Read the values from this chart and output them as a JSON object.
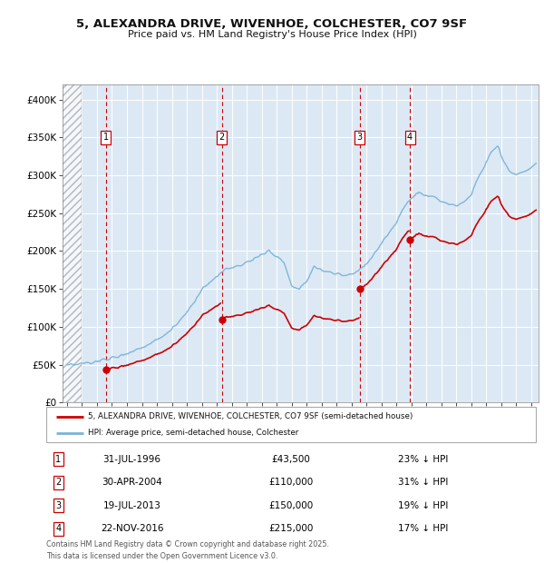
{
  "title_line1": "5, ALEXANDRA DRIVE, WIVENHOE, COLCHESTER, CO7 9SF",
  "title_line2": "Price paid vs. HM Land Registry's House Price Index (HPI)",
  "sales": [
    {
      "date_num": 1996.583,
      "price": 43500,
      "label": "1"
    },
    {
      "date_num": 2004.333,
      "price": 110000,
      "label": "2"
    },
    {
      "date_num": 2013.542,
      "price": 150000,
      "label": "3"
    },
    {
      "date_num": 2016.9,
      "price": 215000,
      "label": "4"
    }
  ],
  "sale_label_details": [
    {
      "num": "1",
      "date": "31-JUL-1996",
      "price": "£43,500",
      "hpi": "23% ↓ HPI"
    },
    {
      "num": "2",
      "date": "30-APR-2004",
      "price": "£110,000",
      "hpi": "31% ↓ HPI"
    },
    {
      "num": "3",
      "date": "19-JUL-2013",
      "price": "£150,000",
      "hpi": "19% ↓ HPI"
    },
    {
      "num": "4",
      "date": "22-NOV-2016",
      "price": "£215,000",
      "hpi": "17% ↓ HPI"
    }
  ],
  "hpi_color": "#7ab3d8",
  "sale_color": "#cc0000",
  "vline_color": "#cc0000",
  "background_color": "#dce9f5",
  "xlim": [
    1993.7,
    2025.5
  ],
  "ylim": [
    0,
    420000
  ],
  "yticks": [
    0,
    50000,
    100000,
    150000,
    200000,
    250000,
    300000,
    350000,
    400000
  ],
  "ytick_labels": [
    "£0",
    "£50K",
    "£100K",
    "£150K",
    "£200K",
    "£250K",
    "£300K",
    "£350K",
    "£400K"
  ],
  "xticks": [
    1994,
    1995,
    1996,
    1997,
    1998,
    1999,
    2000,
    2001,
    2002,
    2003,
    2004,
    2005,
    2006,
    2007,
    2008,
    2009,
    2010,
    2011,
    2012,
    2013,
    2014,
    2015,
    2016,
    2017,
    2018,
    2019,
    2020,
    2021,
    2022,
    2023,
    2024,
    2025
  ],
  "legend_sale_label": "5, ALEXANDRA DRIVE, WIVENHOE, COLCHESTER, CO7 9SF (semi-detached house)",
  "legend_hpi_label": "HPI: Average price, semi-detached house, Colchester",
  "footer": "Contains HM Land Registry data © Crown copyright and database right 2025.\nThis data is licensed under the Open Government Licence v3.0."
}
